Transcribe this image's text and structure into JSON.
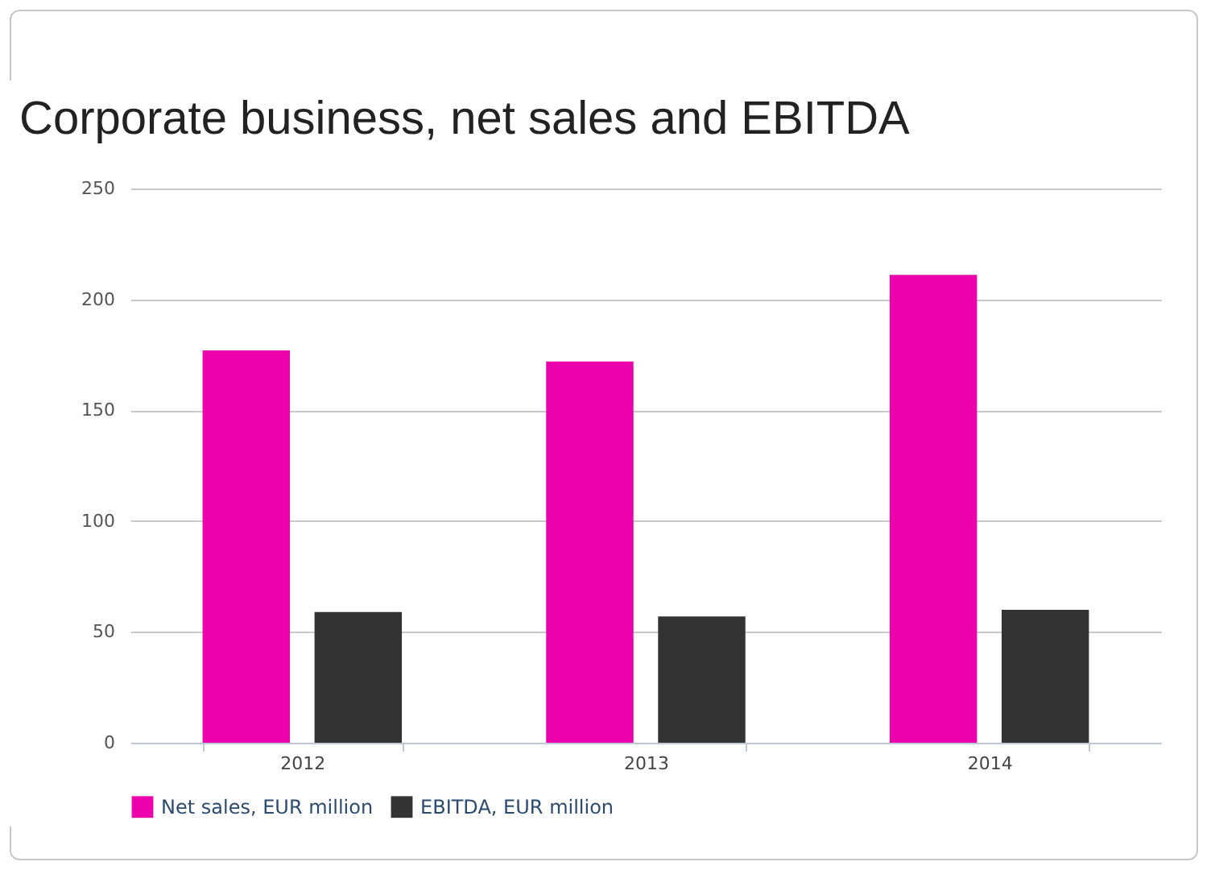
{
  "chart_data": {
    "type": "bar",
    "title": "Corporate business, net sales and EBITDA",
    "categories": [
      "2012",
      "2013",
      "2014"
    ],
    "series": [
      {
        "name": "Net sales, EUR million",
        "color": "#ec00ac",
        "values": [
          177,
          172,
          211
        ]
      },
      {
        "name": "EBITDA, EUR million",
        "color": "#333333",
        "values": [
          59,
          57,
          60
        ]
      }
    ],
    "ylim": [
      0,
      250
    ],
    "yticks": [
      0,
      50,
      100,
      150,
      200,
      250
    ],
    "grid": "y",
    "legend": "bottom"
  }
}
